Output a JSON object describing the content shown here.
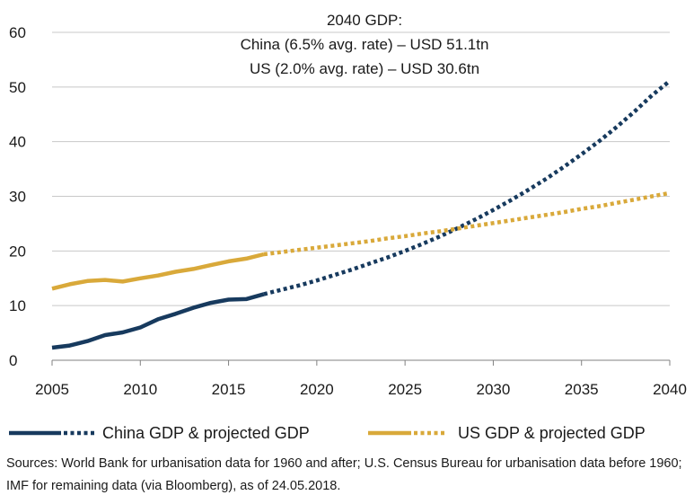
{
  "chart_data": {
    "type": "line",
    "xlim": [
      2005,
      2040
    ],
    "ylim": [
      0,
      60
    ],
    "xticks": [
      2005,
      2010,
      2015,
      2020,
      2025,
      2030,
      2035,
      2040
    ],
    "yticks": [
      0,
      10,
      20,
      30,
      40,
      50,
      60
    ],
    "grid": "horizontal",
    "annotation": [
      "2040 GDP:",
      "China (6.5% avg. rate) – USD 51.1tn",
      "US (2.0% avg. rate) – USD 30.6tn"
    ],
    "series": [
      {
        "name": "China GDP & projected GDP",
        "color": "#173a5e",
        "actual": [
          [
            2005,
            2.3
          ],
          [
            2006,
            2.7
          ],
          [
            2007,
            3.5
          ],
          [
            2008,
            4.6
          ],
          [
            2009,
            5.1
          ],
          [
            2010,
            6.0
          ],
          [
            2011,
            7.5
          ],
          [
            2012,
            8.5
          ],
          [
            2013,
            9.6
          ],
          [
            2014,
            10.5
          ],
          [
            2015,
            11.1
          ],
          [
            2016,
            11.2
          ],
          [
            2017,
            12.1
          ]
        ],
        "projected": [
          [
            2017,
            12.1
          ],
          [
            2018,
            12.9
          ],
          [
            2019,
            13.7
          ],
          [
            2020,
            14.6
          ],
          [
            2021,
            15.6
          ],
          [
            2022,
            16.6
          ],
          [
            2023,
            17.7
          ],
          [
            2024,
            18.8
          ],
          [
            2025,
            20.0
          ],
          [
            2026,
            21.3
          ],
          [
            2027,
            22.7
          ],
          [
            2028,
            24.2
          ],
          [
            2029,
            25.8
          ],
          [
            2030,
            27.5
          ],
          [
            2031,
            29.3
          ],
          [
            2032,
            31.2
          ],
          [
            2033,
            33.2
          ],
          [
            2034,
            35.4
          ],
          [
            2035,
            37.7
          ],
          [
            2036,
            40.1
          ],
          [
            2037,
            42.7
          ],
          [
            2038,
            45.5
          ],
          [
            2039,
            48.5
          ],
          [
            2040,
            51.1
          ]
        ]
      },
      {
        "name": "US GDP & projected GDP",
        "color": "#d9a93a",
        "actual": [
          [
            2005,
            13.1
          ],
          [
            2006,
            13.9
          ],
          [
            2007,
            14.5
          ],
          [
            2008,
            14.7
          ],
          [
            2009,
            14.4
          ],
          [
            2010,
            15.0
          ],
          [
            2011,
            15.5
          ],
          [
            2012,
            16.2
          ],
          [
            2013,
            16.7
          ],
          [
            2014,
            17.4
          ],
          [
            2015,
            18.1
          ],
          [
            2016,
            18.6
          ],
          [
            2017,
            19.4
          ]
        ],
        "projected": [
          [
            2017,
            19.4
          ],
          [
            2018,
            19.8
          ],
          [
            2019,
            20.2
          ],
          [
            2020,
            20.6
          ],
          [
            2021,
            21.0
          ],
          [
            2022,
            21.4
          ],
          [
            2023,
            21.8
          ],
          [
            2024,
            22.3
          ],
          [
            2025,
            22.7
          ],
          [
            2026,
            23.2
          ],
          [
            2027,
            23.6
          ],
          [
            2028,
            24.1
          ],
          [
            2029,
            24.6
          ],
          [
            2030,
            25.1
          ],
          [
            2031,
            25.6
          ],
          [
            2032,
            26.1
          ],
          [
            2033,
            26.6
          ],
          [
            2034,
            27.1
          ],
          [
            2035,
            27.7
          ],
          [
            2036,
            28.2
          ],
          [
            2037,
            28.8
          ],
          [
            2038,
            29.4
          ],
          [
            2039,
            30.0
          ],
          [
            2040,
            30.6
          ]
        ]
      }
    ]
  },
  "sources_text": "Sources: World Bank for urbanisation data for 1960 and after; U.S. Census Bureau for urbanisation data before 1960; IMF for remaining data (via Bloomberg), as of 24.05.2018."
}
